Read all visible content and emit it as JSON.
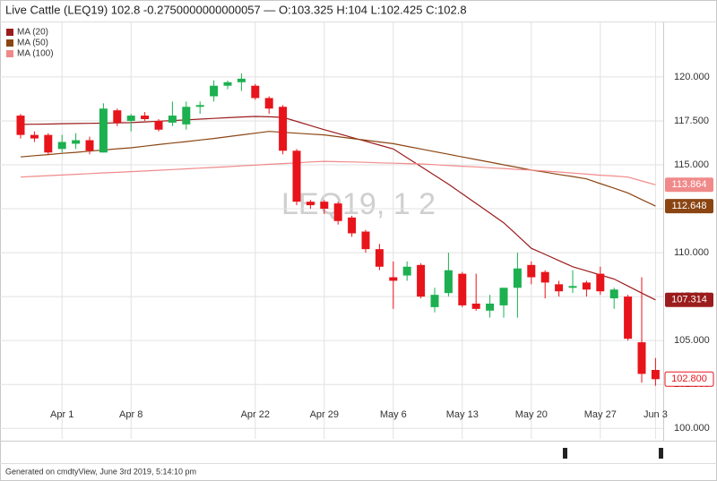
{
  "chart_data": {
    "type": "candlestick",
    "title": "Live Cattle (LEQ19) 102.8 -0.2750000000000057 — O:103.325 H:104 L:102.425 C:102.8",
    "watermark": "LEQ19, 1 2",
    "footer": "Generated on cmdtyView, June 3rd 2019, 5:14:10 pm",
    "up_color": "#1cb050",
    "down_color": "#e8141b",
    "categories": [
      null,
      null,
      null,
      "Apr 1",
      null,
      null,
      null,
      null,
      "Apr 8",
      null,
      null,
      null,
      null,
      null,
      null,
      null,
      null,
      "Apr 22",
      null,
      null,
      null,
      null,
      "Apr 29",
      null,
      null,
      null,
      null,
      "May 6",
      null,
      null,
      null,
      null,
      "May 13",
      null,
      null,
      null,
      null,
      "May 20",
      null,
      null,
      null,
      null,
      "May 27",
      null,
      null,
      null,
      "Jun 3"
    ],
    "open": [
      117.8,
      116.7,
      116.7,
      115.9,
      116.2,
      116.4,
      115.7,
      118.1,
      117.5,
      117.8,
      117.5,
      117.4,
      117.3,
      118.3,
      118.9,
      119.5,
      119.7,
      119.5,
      118.8,
      118.3,
      115.8,
      112.9,
      112.9,
      112.8,
      112.0,
      111.2,
      110.2,
      108.6,
      108.7,
      109.3,
      106.9,
      107.7,
      108.8,
      107.1,
      106.7,
      107.0,
      108.0,
      109.3,
      108.9,
      108.2,
      108.0,
      108.3,
      108.8,
      107.4,
      107.5,
      104.9,
      103.325
    ],
    "high": [
      117.9,
      116.9,
      116.8,
      116.7,
      116.8,
      116.6,
      118.5,
      118.2,
      117.9,
      118.0,
      117.6,
      118.6,
      118.6,
      118.6,
      119.8,
      119.8,
      120.2,
      119.6,
      118.9,
      118.4,
      115.9,
      113.0,
      113.0,
      112.9,
      112.1,
      111.3,
      110.5,
      109.5,
      109.5,
      109.4,
      108.0,
      110.0,
      108.9,
      108.8,
      107.6,
      108.0,
      110.0,
      109.5,
      109.0,
      108.4,
      109.0,
      108.4,
      109.2,
      108.0,
      107.6,
      108.6,
      104
    ],
    "low": [
      116.5,
      116.3,
      115.6,
      115.7,
      115.9,
      115.6,
      115.7,
      117.2,
      116.9,
      117.5,
      116.9,
      117.2,
      117.0,
      117.9,
      118.6,
      119.3,
      119.2,
      118.7,
      117.9,
      115.6,
      112.7,
      112.5,
      112.2,
      111.6,
      110.9,
      110.0,
      109.0,
      106.8,
      108.4,
      107.4,
      106.6,
      107.5,
      106.9,
      106.7,
      106.3,
      106.3,
      106.3,
      108.2,
      107.4,
      107.5,
      107.7,
      107.5,
      107.6,
      106.8,
      105.0,
      102.6,
      102.425
    ],
    "close": [
      116.7,
      116.5,
      115.7,
      116.3,
      116.4,
      115.8,
      118.2,
      117.4,
      117.8,
      117.6,
      117.0,
      117.8,
      118.3,
      118.4,
      119.5,
      119.7,
      119.9,
      118.8,
      118.2,
      115.8,
      112.9,
      112.7,
      112.5,
      111.8,
      111.1,
      110.2,
      109.2,
      108.4,
      109.2,
      107.5,
      107.6,
      109.0,
      107.0,
      106.8,
      107.1,
      108.0,
      109.1,
      108.6,
      108.3,
      107.8,
      108.1,
      107.9,
      107.8,
      107.9,
      105.1,
      103.1,
      102.8
    ],
    "series": [
      {
        "name": "MA (20)",
        "color": "#9b1c1c",
        "values": [
          117.3,
          117.31,
          117.32,
          117.34,
          117.35,
          117.36,
          117.37,
          117.39,
          117.4,
          117.44,
          117.48,
          117.52,
          117.56,
          117.6,
          117.64,
          117.68,
          117.72,
          117.75,
          117.73,
          117.7,
          117.47,
          117.23,
          117.0,
          116.78,
          116.56,
          116.34,
          116.12,
          115.9,
          115.4,
          114.9,
          114.4,
          113.9,
          113.35,
          112.8,
          112.25,
          111.7,
          110.98,
          110.25,
          109.9,
          109.55,
          109.2,
          108.97,
          108.73,
          108.5,
          108.1,
          107.7,
          107.314
        ]
      },
      {
        "name": "MA (50)",
        "color": "#8b4513",
        "values": [
          115.45,
          115.52,
          115.58,
          115.65,
          115.71,
          115.78,
          115.84,
          115.91,
          115.97,
          116.06,
          116.15,
          116.24,
          116.32,
          116.41,
          116.5,
          116.6,
          116.7,
          116.8,
          116.9,
          116.85,
          116.8,
          116.75,
          116.7,
          116.6,
          116.5,
          116.4,
          116.3,
          116.2,
          116.05,
          115.9,
          115.75,
          115.6,
          115.45,
          115.3,
          115.15,
          115.0,
          114.85,
          114.7,
          114.58,
          114.45,
          114.33,
          114.2,
          113.93,
          113.67,
          113.4,
          113.02,
          112.648
        ]
      },
      {
        "name": "MA (100)",
        "color": "#f08a8a",
        "values": [
          114.3,
          114.34,
          114.38,
          114.42,
          114.46,
          114.5,
          114.54,
          114.57,
          114.61,
          114.65,
          114.69,
          114.73,
          114.77,
          114.81,
          114.85,
          114.89,
          114.94,
          114.98,
          115.03,
          115.07,
          115.11,
          115.16,
          115.2,
          115.18,
          115.16,
          115.14,
          115.11,
          115.09,
          115.07,
          115.05,
          115.01,
          114.96,
          114.92,
          114.88,
          114.83,
          114.79,
          114.74,
          114.7,
          114.64,
          114.59,
          114.53,
          114.47,
          114.41,
          114.36,
          114.3,
          114.08,
          113.864
        ]
      }
    ],
    "price_label": "102.800",
    "ylim": [
      99.4,
      122.85
    ],
    "yticks": [
      {
        "value": 100,
        "label": "100.000"
      },
      {
        "value": 102.5,
        "label": "102.500"
      },
      {
        "value": 105,
        "label": "105.000"
      },
      {
        "value": 107.5,
        "label": "107.500"
      },
      {
        "value": 110,
        "label": "110.000"
      },
      {
        "value": 112.5,
        "label": "112.500"
      },
      {
        "value": 115,
        "label": "115.000"
      },
      {
        "value": 117.5,
        "label": "117.500"
      },
      {
        "value": 120,
        "label": "120.000"
      }
    ],
    "grid": true
  }
}
